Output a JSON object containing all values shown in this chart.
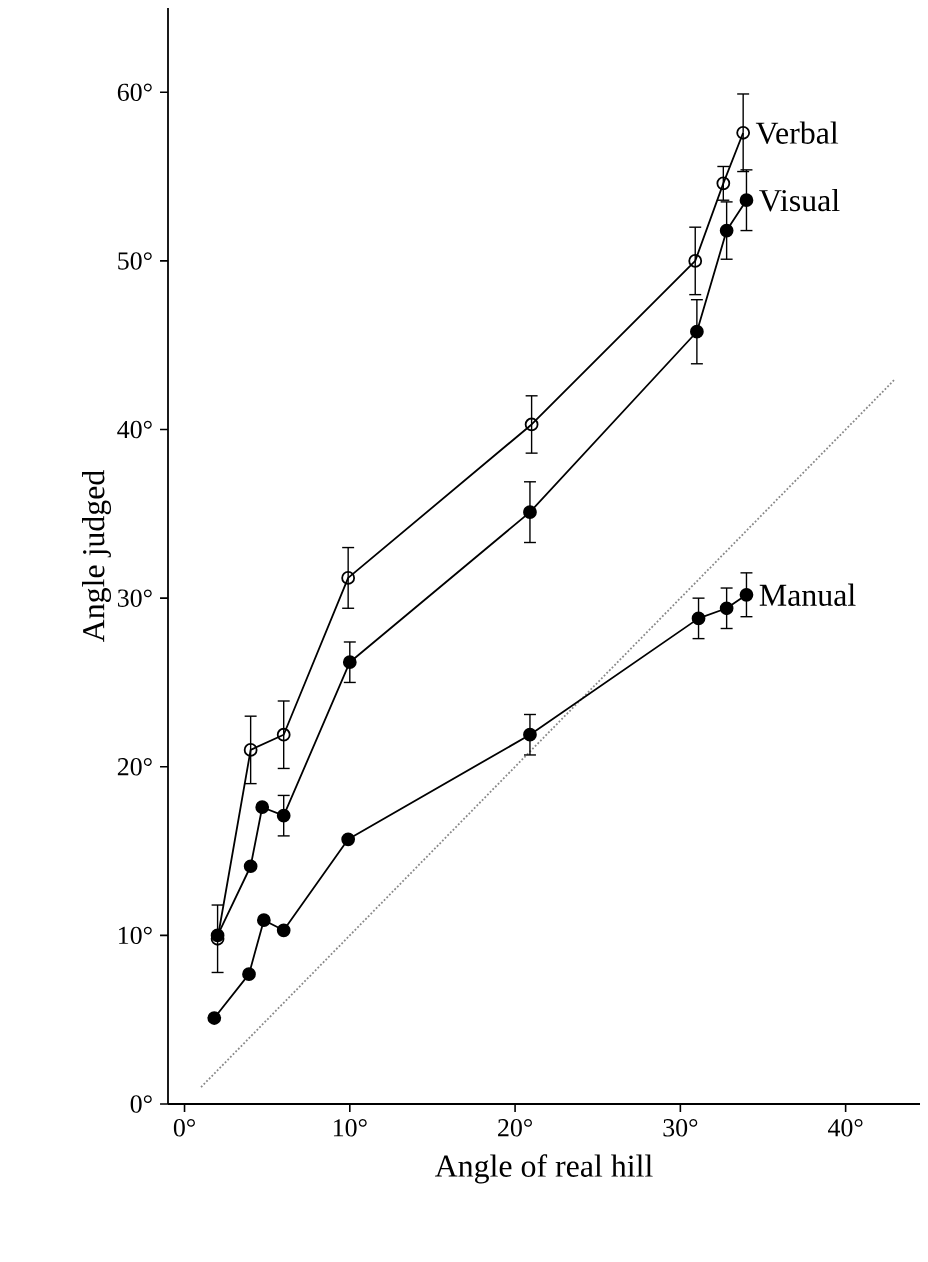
{
  "chart_data": {
    "type": "line",
    "xlabel": "Angle of real hill",
    "ylabel": "Angle judged",
    "xlim": [
      -1,
      44.5
    ],
    "ylim": [
      0,
      65
    ],
    "xticks": [
      {
        "value": 0,
        "label": "0°"
      },
      {
        "value": 10,
        "label": "10°"
      },
      {
        "value": 20,
        "label": "20°"
      },
      {
        "value": 30,
        "label": "30°"
      },
      {
        "value": 40,
        "label": "40°"
      }
    ],
    "yticks": [
      {
        "value": 0,
        "label": "0°"
      },
      {
        "value": 10,
        "label": "10°"
      },
      {
        "value": 20,
        "label": "20°"
      },
      {
        "value": 30,
        "label": "30°"
      },
      {
        "value": 40,
        "label": "40°"
      },
      {
        "value": 50,
        "label": "50°"
      },
      {
        "value": 60,
        "label": "60°"
      }
    ],
    "grid": false,
    "legend": false,
    "marker": "circle",
    "line_style": "solid",
    "series": [
      {
        "name": "Verbal",
        "color": "#000000",
        "marker": "circle",
        "x": [
          2,
          4,
          6,
          9.9,
          21,
          30.9,
          32.6,
          33.8
        ],
        "values": [
          9.8,
          21,
          21.9,
          31.2,
          40.3,
          50,
          54.6,
          57.6
        ],
        "errors": [
          2,
          2,
          2,
          1.8,
          1.7,
          2,
          1,
          2.3
        ]
      },
      {
        "name": "Visual",
        "color": "#000000",
        "x": [
          2,
          4,
          4.7,
          6,
          10,
          20.9,
          31,
          32.8,
          34
        ],
        "values": [
          10,
          14.1,
          17.6,
          17.1,
          26.2,
          35.1,
          45.8,
          51.8,
          53.6
        ],
        "errors": [
          null,
          null,
          null,
          1.2,
          1.2,
          1.8,
          1.9,
          1.7,
          1.8
        ]
      },
      {
        "name": "Manual",
        "color": "#000000",
        "x": [
          1.8,
          3.9,
          4.8,
          6,
          9.9,
          20.9,
          31.1,
          32.8,
          34
        ],
        "values": [
          5.1,
          7.7,
          10.9,
          10.3,
          15.7,
          21.9,
          28.8,
          29.4,
          30.2
        ],
        "errors": [
          null,
          null,
          null,
          null,
          null,
          1.2,
          1.2,
          1.2,
          1.3
        ]
      },
      {
        "type": "line",
        "color": "#888888",
        "marker": "none",
        "line_style": "dotted",
        "x": [
          1,
          43
        ],
        "values": [
          1,
          43
        ]
      }
    ]
  }
}
